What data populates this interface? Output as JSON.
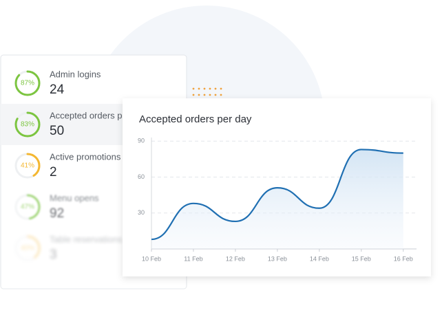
{
  "stats": [
    {
      "percent": 87,
      "percent_label": "87%",
      "label": "Admin logins",
      "value": 24,
      "color": "#7cc540"
    },
    {
      "percent": 83,
      "percent_label": "83%",
      "label": "Accepted orders per day",
      "value": 50,
      "color": "#7cc540"
    },
    {
      "percent": 41,
      "percent_label": "41%",
      "label": "Active promotions",
      "value": 2,
      "color": "#f4b731"
    },
    {
      "percent": 47,
      "percent_label": "47%",
      "label": "Menu opens",
      "value": 92,
      "color": "#7cc540"
    },
    {
      "percent": 40,
      "percent_label": "40%",
      "label": "Table reservations",
      "value": 3,
      "color": "#f4b731"
    }
  ],
  "chart_data": {
    "type": "area",
    "title": "Accepted orders per day",
    "categories": [
      "10 Feb",
      "11 Feb",
      "12 Feb",
      "13 Feb",
      "14 Feb",
      "15 Feb",
      "16 Feb"
    ],
    "series": [
      {
        "name": "Accepted orders",
        "color": "#1f6fb2",
        "values": [
          8,
          38,
          23,
          51,
          34,
          83,
          80
        ]
      }
    ],
    "ylim": [
      0,
      93
    ],
    "yticks": [
      30,
      60,
      90
    ],
    "grid": true
  }
}
